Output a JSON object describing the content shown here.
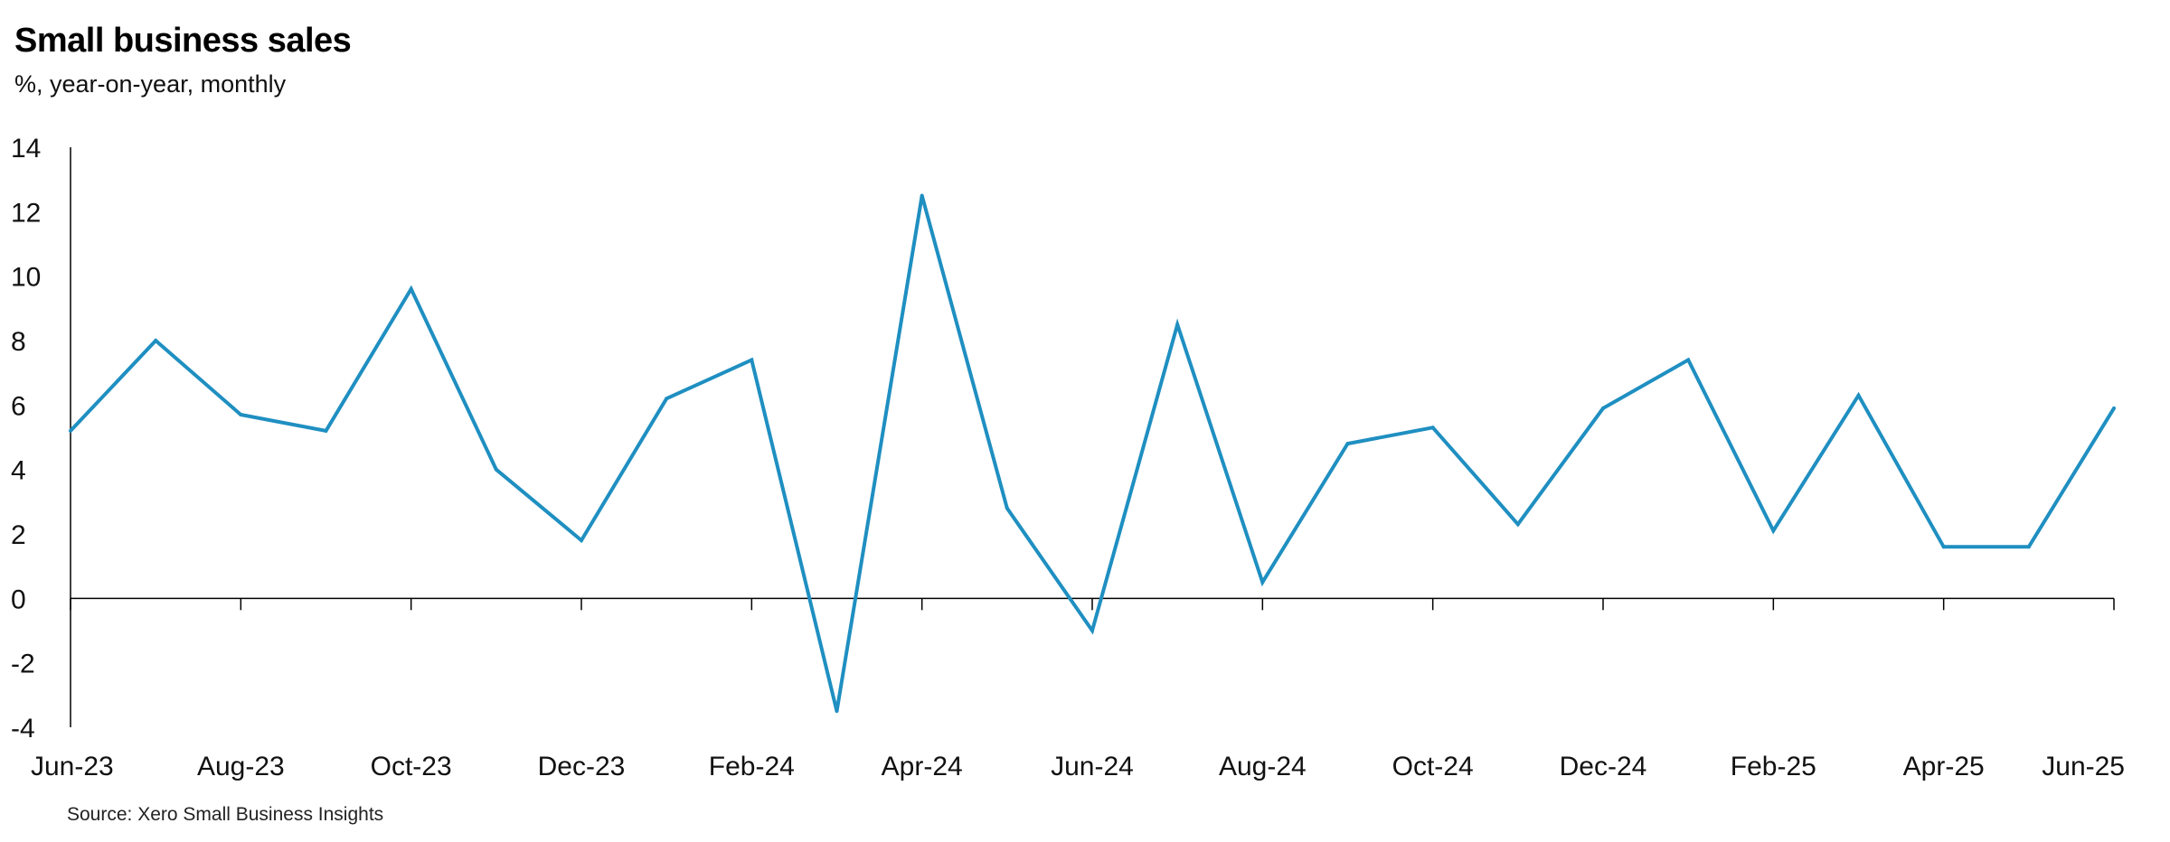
{
  "header": {
    "title": "Small business sales",
    "subtitle": "%, year-on-year, monthly"
  },
  "footer": {
    "source": "Source: Xero Small Business Insights"
  },
  "colors": {
    "series": "#1f8fc1",
    "axis": "#000000"
  },
  "chart_data": {
    "type": "line",
    "title": "Small business sales",
    "subtitle": "%, year-on-year, monthly",
    "xlabel": "",
    "ylabel": "",
    "ylim": [
      -4,
      14
    ],
    "yticks": [
      -4,
      -2,
      0,
      2,
      4,
      6,
      8,
      10,
      12,
      14
    ],
    "grid": false,
    "legend": "none",
    "x": [
      "Jun-23",
      "Jul-23",
      "Aug-23",
      "Sep-23",
      "Oct-23",
      "Nov-23",
      "Dec-23",
      "Jan-24",
      "Feb-24",
      "Mar-24",
      "Apr-24",
      "May-24",
      "Jun-24",
      "Jul-24",
      "Aug-24",
      "Sep-24",
      "Oct-24",
      "Nov-24",
      "Dec-24",
      "Jan-25",
      "Feb-25",
      "Mar-25",
      "Apr-25",
      "May-25",
      "Jun-25"
    ],
    "xtick_labels": [
      "Jun-23",
      "Aug-23",
      "Oct-23",
      "Dec-23",
      "Feb-24",
      "Apr-24",
      "Jun-24",
      "Aug-24",
      "Oct-24",
      "Dec-24",
      "Feb-25",
      "Apr-25",
      "Jun-25"
    ],
    "series": [
      {
        "values": [
          5.2,
          8.0,
          5.7,
          5.2,
          9.6,
          4.0,
          1.8,
          6.2,
          7.4,
          -3.5,
          12.5,
          2.8,
          -1.0,
          8.5,
          0.5,
          4.8,
          5.3,
          2.3,
          5.9,
          7.4,
          2.1,
          6.3,
          1.6,
          1.6,
          5.9
        ]
      }
    ]
  }
}
